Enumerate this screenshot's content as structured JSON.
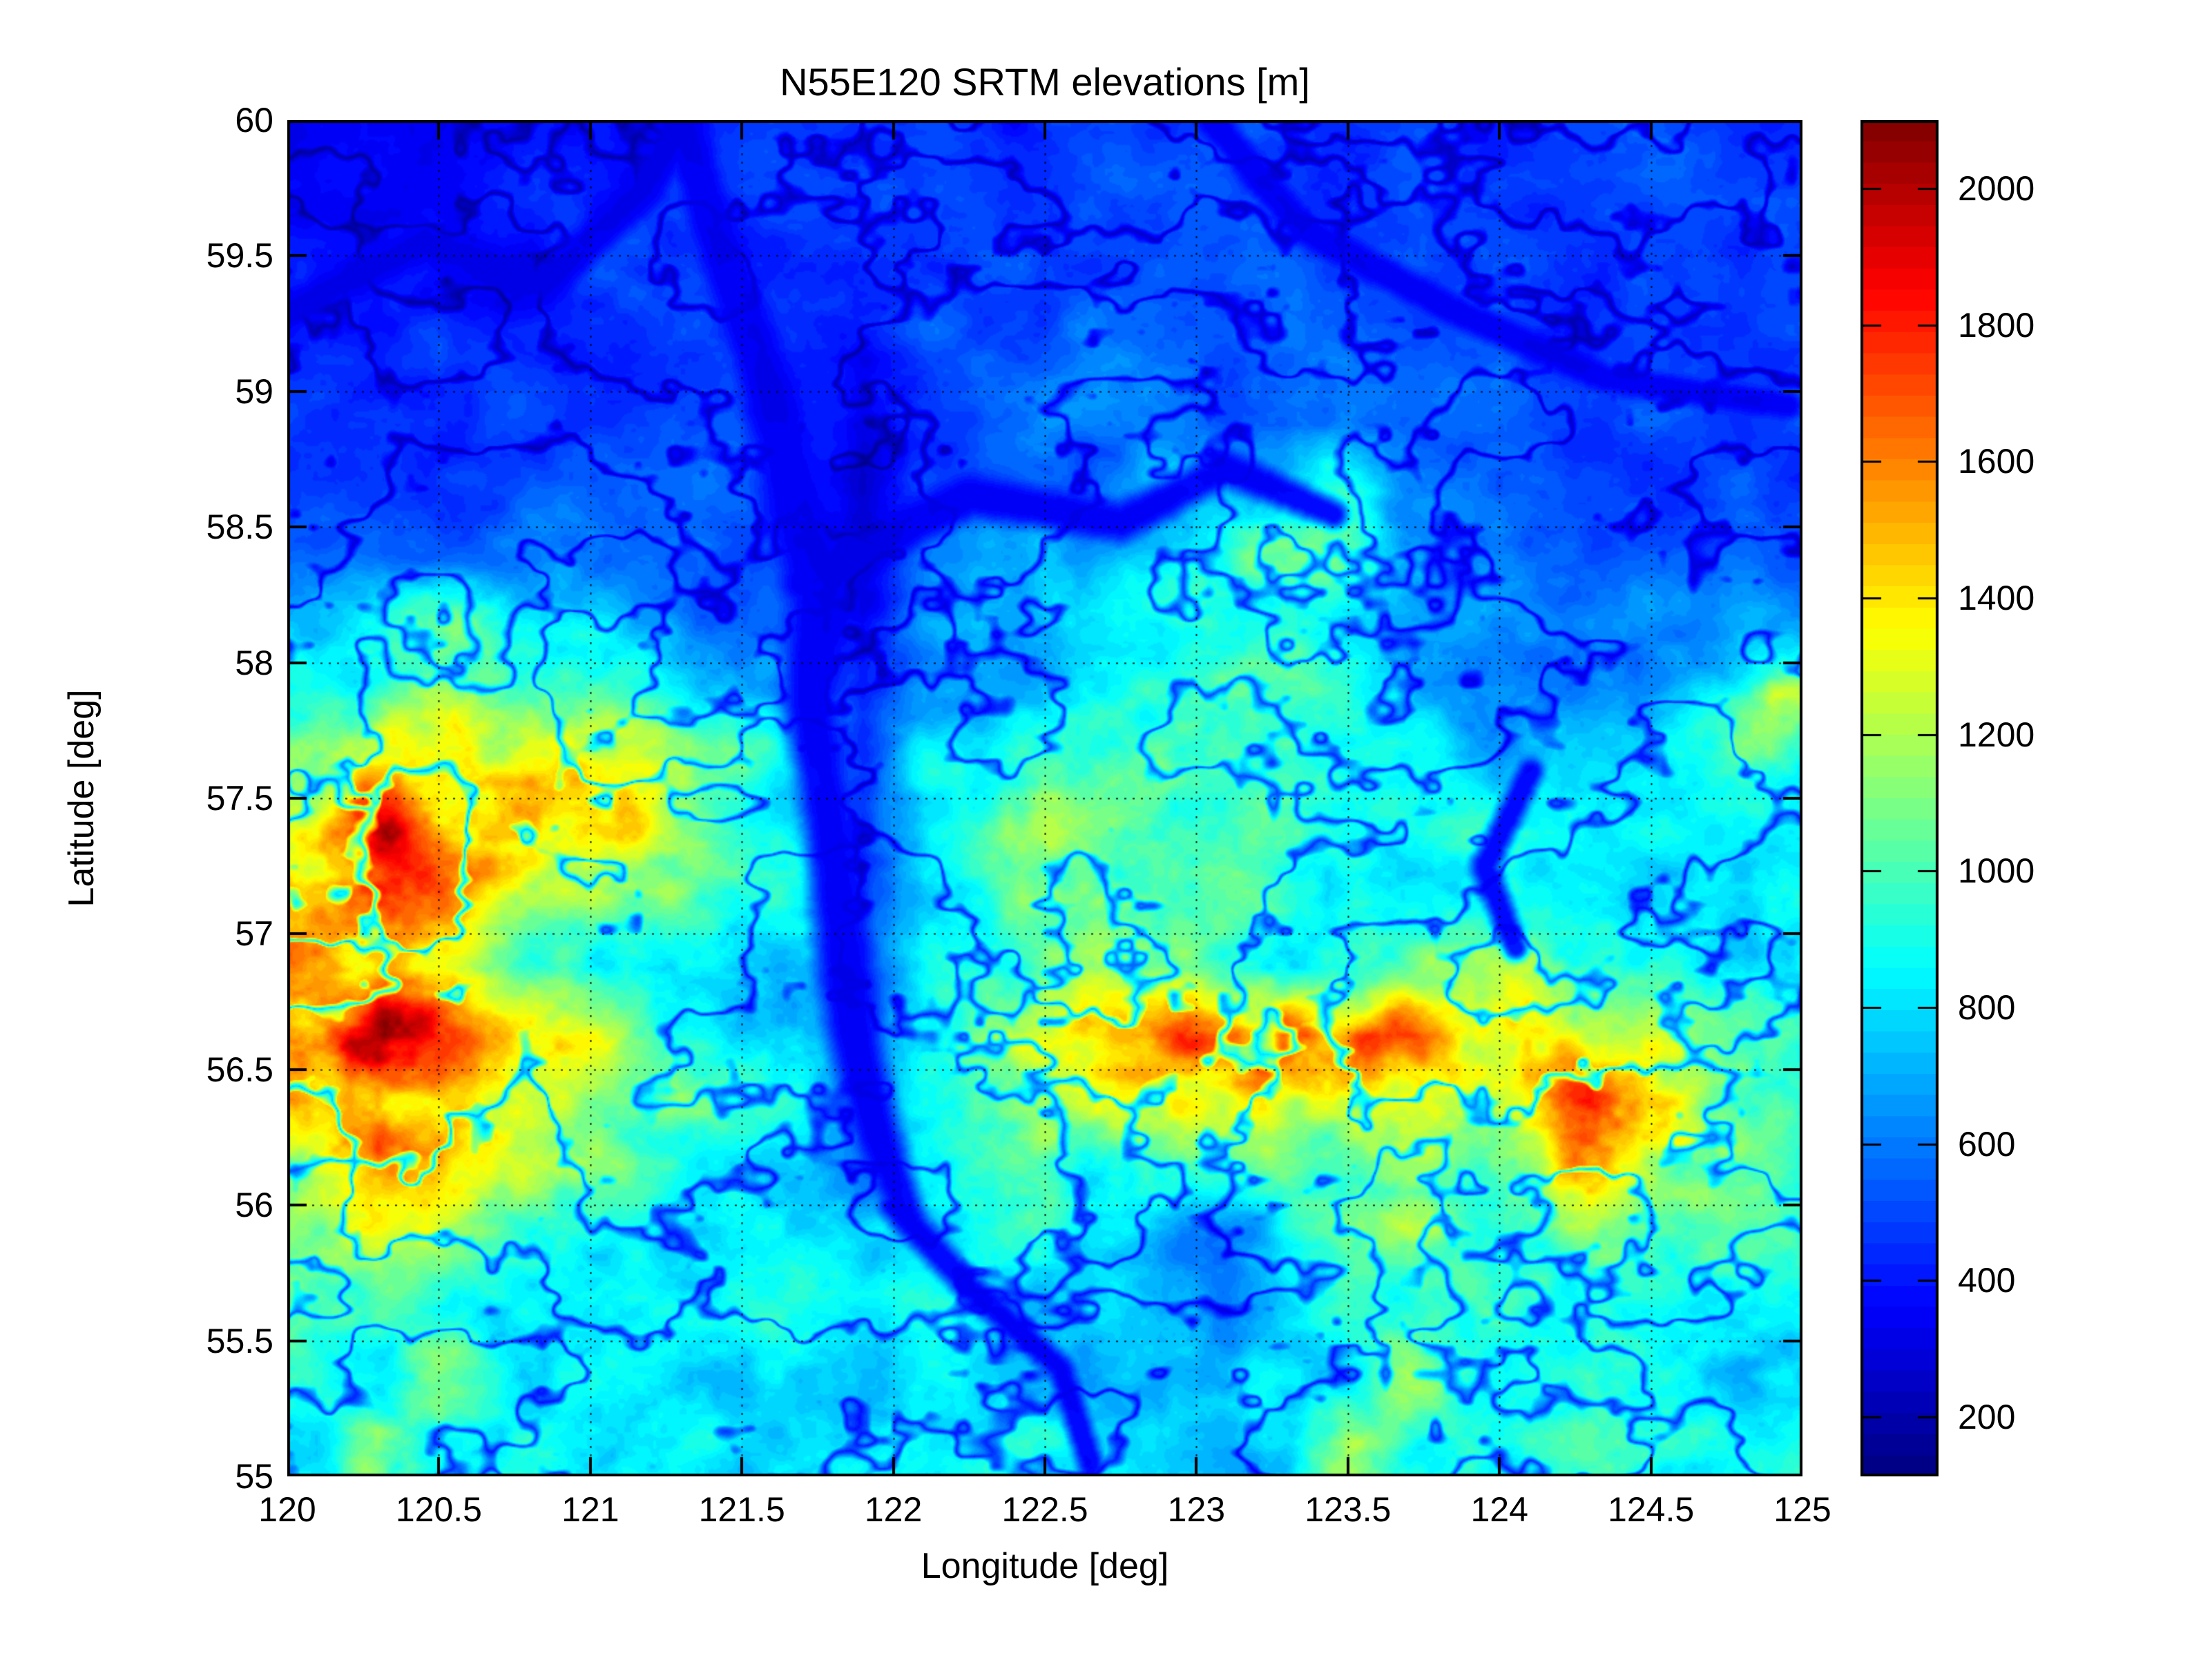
{
  "figure": {
    "title": "N55E120 SRTM elevations [m]",
    "background": "#ffffff"
  },
  "axes": {
    "xlabel": "Longitude [deg]",
    "ylabel": "Latitude [deg]",
    "xlim": [
      120,
      125
    ],
    "ylim": [
      55,
      60
    ],
    "grid": true,
    "xtick_labels": [
      "120",
      "120.5",
      "121",
      "121.5",
      "122",
      "122.5",
      "123",
      "123.5",
      "124",
      "124.5",
      "125"
    ],
    "ytick_labels": [
      "55",
      "55.5",
      "56",
      "56.5",
      "57",
      "57.5",
      "58",
      "58.5",
      "59",
      "59.5",
      "60"
    ]
  },
  "colorbar": {
    "tick_labels": [
      "200",
      "400",
      "600",
      "800",
      "1000",
      "1200",
      "1400",
      "1600",
      "1800",
      "2000"
    ],
    "tick_values": [
      200,
      400,
      600,
      800,
      1000,
      1200,
      1400,
      1600,
      1800,
      2000
    ],
    "vmin": 113,
    "vmax": 2100,
    "levels": 64,
    "colormap": "jet",
    "anchor_colors": {
      "low": "#00008f",
      "mid": "#00ffff",
      "high": "#7f0000"
    }
  },
  "chart_data": {
    "type": "heatmap",
    "title": "N55E120 SRTM elevations [m]",
    "xlabel": "Longitude [deg]",
    "ylabel": "Latitude [deg]",
    "units": "m",
    "x_range": [
      120,
      125
    ],
    "y_range": [
      55,
      60
    ],
    "value_range": [
      113,
      2100
    ],
    "colormap": "jet",
    "grid_cols": 25,
    "grid_rows": 20,
    "row_order": "north-to-south",
    "elevation_grid": [
      [
        380,
        350,
        340,
        420,
        450,
        430,
        420,
        450,
        480,
        470,
        450,
        440,
        460,
        480,
        500,
        490,
        470,
        460,
        450,
        440,
        460,
        480,
        490,
        470,
        450
      ],
      [
        340,
        330,
        390,
        420,
        440,
        460,
        440,
        420,
        450,
        470,
        480,
        460,
        450,
        480,
        500,
        510,
        490,
        480,
        470,
        460,
        450,
        470,
        480,
        460,
        450
      ],
      [
        400,
        420,
        370,
        350,
        430,
        470,
        490,
        460,
        440,
        450,
        480,
        500,
        520,
        500,
        490,
        510,
        520,
        500,
        480,
        470,
        460,
        450,
        470,
        480,
        470
      ],
      [
        430,
        450,
        470,
        430,
        400,
        380,
        440,
        480,
        460,
        310,
        480,
        500,
        520,
        540,
        530,
        510,
        530,
        550,
        520,
        500,
        480,
        470,
        460,
        450,
        460
      ],
      [
        440,
        460,
        480,
        500,
        450,
        420,
        460,
        500,
        480,
        290,
        500,
        530,
        560,
        580,
        560,
        540,
        560,
        580,
        550,
        530,
        510,
        490,
        480,
        470,
        480
      ],
      [
        450,
        480,
        500,
        520,
        540,
        480,
        500,
        530,
        510,
        300,
        520,
        560,
        600,
        640,
        700,
        800,
        900,
        850,
        650,
        570,
        540,
        520,
        500,
        490,
        500
      ],
      [
        520,
        560,
        600,
        580,
        600,
        550,
        520,
        560,
        540,
        320,
        550,
        600,
        650,
        700,
        800,
        1000,
        1100,
        900,
        700,
        620,
        580,
        550,
        530,
        510,
        520
      ],
      [
        700,
        900,
        1050,
        1000,
        900,
        800,
        700,
        650,
        600,
        350,
        600,
        650,
        700,
        750,
        800,
        900,
        950,
        800,
        700,
        650,
        620,
        600,
        580,
        560,
        700
      ],
      [
        900,
        1100,
        1300,
        1200,
        1100,
        1000,
        900,
        800,
        700,
        400,
        700,
        750,
        800,
        850,
        900,
        950,
        900,
        850,
        800,
        750,
        700,
        680,
        700,
        900,
        1250
      ],
      [
        1100,
        1300,
        1400,
        1350,
        1400,
        1300,
        1100,
        1000,
        800,
        450,
        800,
        900,
        1000,
        1050,
        1000,
        950,
        900,
        850,
        800,
        780,
        760,
        740,
        750,
        850,
        950
      ],
      [
        1300,
        1800,
        1600,
        1400,
        1350,
        1400,
        1200,
        1000,
        900,
        450,
        900,
        1000,
        1100,
        1050,
        1000,
        950,
        900,
        880,
        860,
        840,
        820,
        800,
        780,
        800,
        850
      ],
      [
        1500,
        1700,
        1400,
        1300,
        1200,
        1100,
        1000,
        950,
        900,
        500,
        850,
        950,
        1100,
        1200,
        1100,
        1000,
        950,
        900,
        880,
        860,
        840,
        820,
        800,
        820,
        840
      ],
      [
        1400,
        1500,
        1300,
        1100,
        1000,
        950,
        900,
        850,
        800,
        500,
        800,
        900,
        1000,
        1100,
        1050,
        1000,
        950,
        950,
        1000,
        1100,
        1200,
        1100,
        1000,
        950,
        900
      ],
      [
        1600,
        1800,
        1600,
        1400,
        1300,
        1100,
        1000,
        900,
        850,
        550,
        900,
        1100,
        1300,
        1400,
        1500,
        1600,
        1900,
        1850,
        1500,
        1300,
        1400,
        1300,
        1100,
        1000,
        950
      ],
      [
        1500,
        1700,
        1500,
        1300,
        1200,
        1050,
        950,
        900,
        850,
        600,
        900,
        1000,
        1200,
        1300,
        1400,
        1300,
        1200,
        1300,
        1400,
        1300,
        1500,
        1700,
        1600,
        1200,
        1000
      ],
      [
        1200,
        1400,
        1300,
        1200,
        1100,
        1000,
        900,
        850,
        800,
        650,
        850,
        950,
        1100,
        1000,
        950,
        900,
        1000,
        1100,
        1200,
        1100,
        1300,
        1600,
        1400,
        1100,
        950
      ],
      [
        1000,
        1100,
        1050,
        1000,
        950,
        900,
        850,
        800,
        780,
        700,
        800,
        850,
        900,
        850,
        700,
        650,
        800,
        900,
        1000,
        950,
        1000,
        1100,
        1050,
        950,
        900
      ],
      [
        900,
        1000,
        950,
        900,
        880,
        860,
        840,
        820,
        800,
        750,
        780,
        800,
        820,
        780,
        650,
        620,
        750,
        850,
        900,
        880,
        900,
        950,
        920,
        880,
        860
      ],
      [
        850,
        950,
        1100,
        900,
        870,
        850,
        830,
        810,
        800,
        760,
        800,
        820,
        840,
        800,
        700,
        680,
        780,
        880,
        1050,
        900,
        880,
        920,
        900,
        870,
        850
      ],
      [
        800,
        1150,
        900,
        870,
        850,
        830,
        820,
        800,
        790,
        770,
        800,
        820,
        830,
        800,
        750,
        720,
        800,
        1200,
        900,
        880,
        860,
        900,
        880,
        850,
        830
      ]
    ],
    "rivers": [
      [
        [
          121.3,
          60.0,
          0.05
        ],
        [
          121.42,
          59.55,
          0.05
        ],
        [
          121.58,
          59.05,
          0.06
        ],
        [
          121.66,
          58.65,
          0.07
        ],
        [
          121.76,
          58.25,
          0.07
        ],
        [
          121.72,
          57.85,
          0.06
        ],
        [
          121.78,
          57.45,
          0.06
        ],
        [
          121.82,
          57.05,
          0.06
        ],
        [
          121.86,
          56.65,
          0.06
        ],
        [
          121.95,
          56.25,
          0.05
        ],
        [
          122.05,
          55.95,
          0.04
        ]
      ],
      [
        [
          120.0,
          59.3,
          0.04
        ],
        [
          120.45,
          59.55,
          0.04
        ],
        [
          120.85,
          59.4,
          0.04
        ],
        [
          121.18,
          59.75,
          0.045
        ],
        [
          121.3,
          60.0,
          0.05
        ]
      ],
      [
        [
          121.7,
          58.3,
          0.05
        ],
        [
          122.25,
          58.62,
          0.05
        ],
        [
          122.75,
          58.52,
          0.045
        ],
        [
          123.1,
          58.72,
          0.04
        ],
        [
          123.45,
          58.55,
          0.035
        ]
      ],
      [
        [
          123.05,
          60.0,
          0.035
        ],
        [
          123.35,
          59.6,
          0.035
        ],
        [
          123.85,
          59.3,
          0.035
        ],
        [
          124.35,
          59.05,
          0.03
        ],
        [
          124.95,
          58.95,
          0.03
        ]
      ],
      [
        [
          122.0,
          56.0,
          0.035
        ],
        [
          122.25,
          55.7,
          0.035
        ],
        [
          122.55,
          55.4,
          0.03
        ],
        [
          122.65,
          55.05,
          0.03
        ]
      ],
      [
        [
          124.1,
          57.6,
          0.03
        ],
        [
          123.95,
          57.25,
          0.035
        ],
        [
          124.05,
          56.95,
          0.03
        ]
      ]
    ],
    "river_floor_elevation": 315
  }
}
